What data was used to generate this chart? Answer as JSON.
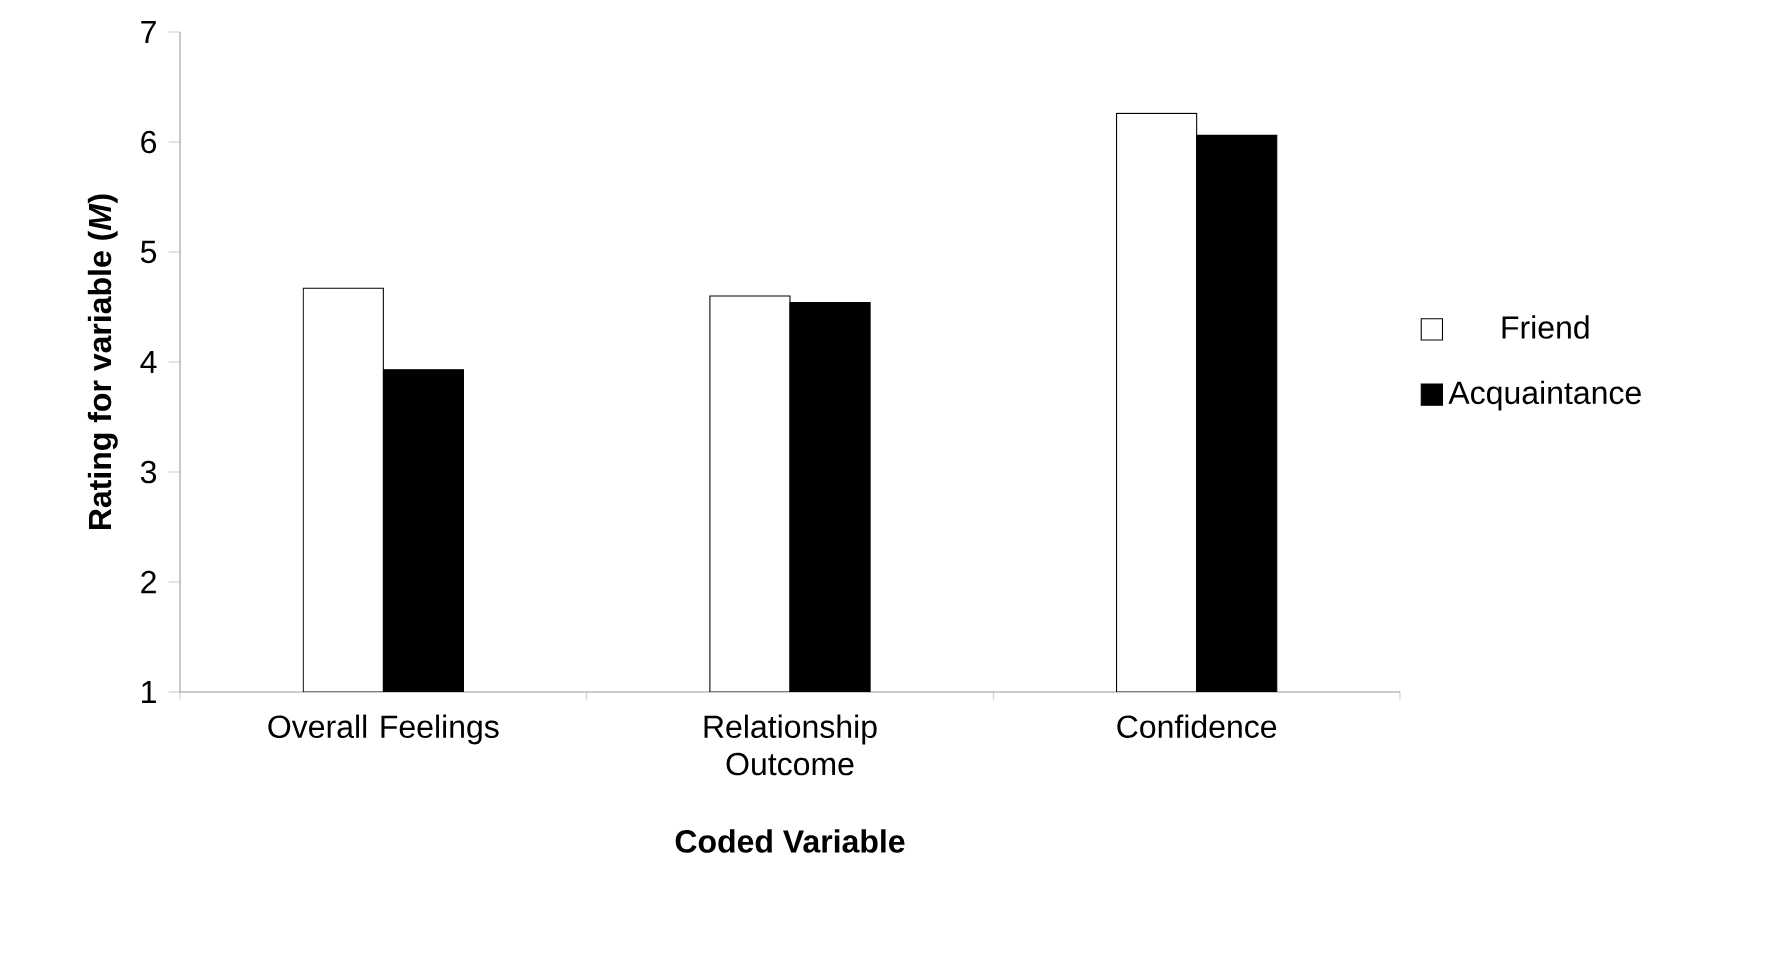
{
  "chart_data": {
    "type": "bar",
    "xlabel": "Coded Variable",
    "ylabel": "Rating for variable (*M*)",
    "categories": [
      "Overall Feelings",
      "Relationship Outcome",
      "Confidence"
    ],
    "series": [
      {
        "name": "Friend",
        "color": "#ffffff",
        "values": [
          4.67,
          4.6,
          6.26
        ]
      },
      {
        "name": "Acquaintance",
        "color": "#000000",
        "values": [
          3.93,
          4.54,
          6.06
        ]
      }
    ],
    "ylim": [
      1,
      7
    ],
    "yticks": [
      1,
      2,
      3,
      4,
      5,
      6,
      7
    ],
    "grid": false,
    "legend": "right"
  }
}
